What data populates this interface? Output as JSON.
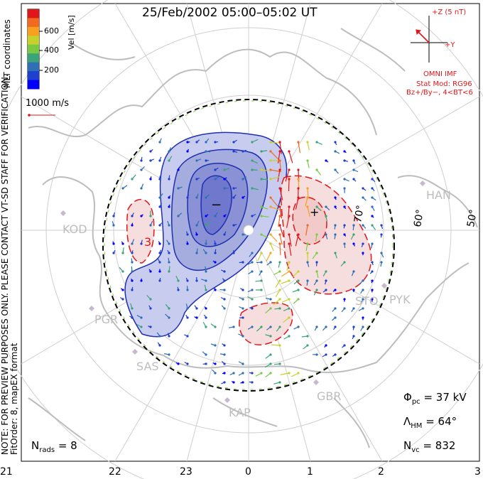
{
  "title": "25/Feb/2002 05:00–05:02 UT",
  "side_text": {
    "coordinates": "MLT coordinates",
    "note_line1": "NOTE: FOR PREVIEW PURPOSES ONLY. PLEASE CONTACT VT-SD STAFF FOR VERIFICATION.",
    "note_line2": "FitOrder: 8, mapEX format"
  },
  "colorbar": {
    "label": "Vel [m/s]",
    "ticks": [
      "600",
      "400",
      "200"
    ],
    "colors": [
      "#e0161b",
      "#f26a1f",
      "#f7a11f",
      "#c8d12a",
      "#7ac943",
      "#3aa37a",
      "#2f6fb5",
      "#1f3fd1",
      "#0000ff"
    ]
  },
  "vector_scale": {
    "label": "1000 m/s"
  },
  "imf": {
    "z_label": "+Z (5 nT)",
    "y_label": "+Y",
    "source": "OMNI IMF",
    "stat_model": "Stat Mod: RG96",
    "condition": "Bz+/By−, 4<BT<6"
  },
  "mlt_labels": [
    "21",
    "22",
    "23",
    "0",
    "1",
    "2",
    "3"
  ],
  "latitude_labels": [
    "70°",
    "60°",
    "50°"
  ],
  "stations": [
    "KOD",
    "PGR",
    "SAS",
    "KAP",
    "GBR",
    "STO",
    "PYK",
    "HAN"
  ],
  "stats": {
    "phi_symbol": "Φ",
    "phi_sub": "pc",
    "phi_value": "= 37 kV",
    "lambda_symbol": "Λ",
    "lambda_sub": "HM",
    "lambda_value": "= 64°",
    "nvc_symbol": "N",
    "nvc_sub": "vc",
    "nvc_value": "= 832",
    "nrads_symbol": "N",
    "nrads_sub": "rads",
    "nrads_value": "= 8"
  },
  "contour_markers": {
    "minus": "−",
    "plus": "+",
    "three": "3"
  },
  "colors": {
    "negative_cell": "#2b3fc7",
    "positive_cell": "#e0161b",
    "map_outline": "#bdbdbd",
    "grid": "#cfcfcf"
  }
}
